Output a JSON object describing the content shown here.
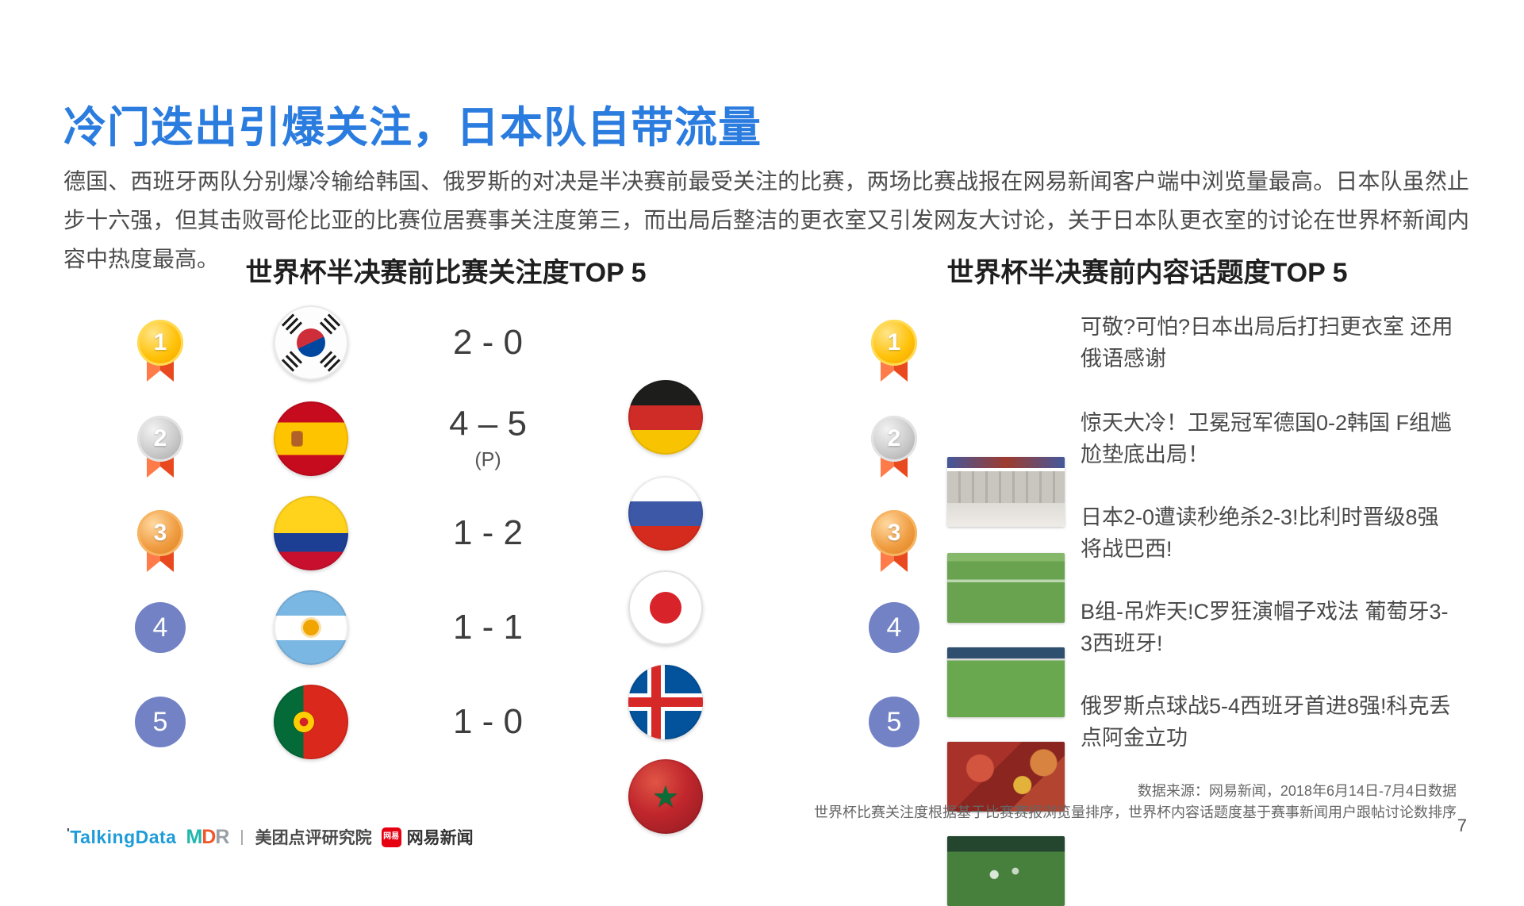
{
  "slide": {
    "title": "冷门迭出引爆关注，日本队自带流量",
    "paragraph": "德国、西班牙两队分别爆冷输给韩国、俄罗斯的对决是半决赛前最受关注的比赛，两场比赛战报在网易新闻客户端中浏览量最高。日本队虽然止步十六强，但其击败哥伦比亚的比赛位居赛事关注度第三，而出局后整洁的更衣室又引发网友大讨论，关于日本队更衣室的讨论在世界杯新闻内容中热度最高。",
    "page_number": "7"
  },
  "left_panel": {
    "header": "世界杯半决赛前比赛关注度TOP 5",
    "rows": [
      {
        "rank": "1",
        "home_flag": "south-korea-flag",
        "score": "2 - 0",
        "away_flag": "germany-flag"
      },
      {
        "rank": "2",
        "home_flag": "spain-flag",
        "score": "4 – 5",
        "score_note": "(P)",
        "away_flag": "russia-flag"
      },
      {
        "rank": "3",
        "home_flag": "colombia-flag",
        "score": "1 - 2",
        "away_flag": "japan-flag"
      },
      {
        "rank": "4",
        "home_flag": "argentina-flag",
        "score": "1 - 1",
        "away_flag": "iceland-flag"
      },
      {
        "rank": "5",
        "home_flag": "portugal-flag",
        "score": "1 - 0",
        "away_flag": "morocco-flag"
      }
    ]
  },
  "right_panel": {
    "header": "世界杯半决赛前内容话题度TOP 5",
    "items": [
      {
        "rank": "1",
        "thumbnail": "japan-locker-room-photo",
        "headline": "可敬?可怕?日本出局后打扫更衣室 还用俄语感谢"
      },
      {
        "rank": "2",
        "thumbnail": "germany-korea-match-photo",
        "headline": "惊天大冷！卫冕冠军德国0-2韩国 F组尴尬垫底出局！"
      },
      {
        "rank": "3",
        "thumbnail": "japan-belgium-match-photo",
        "headline": "日本2-0遭读秒绝杀2-3!比利时晋级8强将战巴西!"
      },
      {
        "rank": "4",
        "thumbnail": "portugal-spain-fans-photo",
        "headline": "B组-吊炸天!C罗狂演帽子戏法 葡萄牙3-3西班牙!"
      },
      {
        "rank": "5",
        "thumbnail": "russia-celebration-photo",
        "headline": "俄罗斯点球战5-4西班牙首进8强!科克丢点阿金立功"
      }
    ]
  },
  "footer": {
    "source_line1": "数据来源：网易新闻，2018年6月14日-7月4日数据",
    "source_line2": "世界杯比赛关注度根据基于比赛赛报浏览量排序，世界杯内容话题度基于赛事新闻用户跟帖讨论数排序",
    "logos": {
      "talkingdata_mark": "'",
      "talkingdata": "TalkingData",
      "mdr_m": "M",
      "mdr_d": "D",
      "mdr_r": "R",
      "divider": "|",
      "meituan": "美团点评研究院",
      "netease_badge": "网易",
      "netease_name": "网易新闻"
    }
  },
  "icons": {
    "morocco_star": "★"
  },
  "colors": {
    "title_blue": "#2B7CDF",
    "medal_gold": "#FFC107",
    "medal_silver": "#C9C9C9",
    "medal_bronze": "#EF9B3F",
    "ribbon_orange": "#E8491F",
    "rank_blue": "#7282C4",
    "netease_red": "#E60012",
    "talkingdata_blue": "#1F9CD8"
  }
}
